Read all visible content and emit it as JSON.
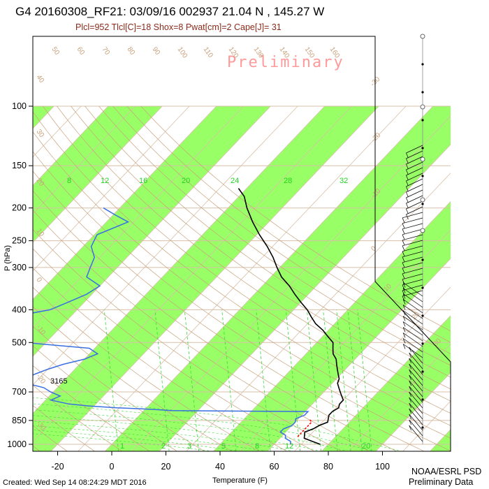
{
  "header": {
    "title": "G4 20160308_RF21: 03/09/16 002937  21.04 N , 145.27 W",
    "indices": "Plcl=952 Tlcl[C]=18 Shox=8 Pwat[cm]=2 Cape[J]= 31"
  },
  "watermark": "Preliminary",
  "footer": {
    "created": "Created: Wed Sep 14 08:24:29 MDT 2016",
    "credit_line1": "NOAA/ESRL PSD",
    "credit_line2": "Preliminary Data"
  },
  "chart_data": {
    "type": "line",
    "subtype": "skew-T log-P sounding",
    "xlabel": "Temperature (F)",
    "ylabel": "P (hPa)",
    "x_ticks": [
      -20,
      0,
      20,
      40,
      60,
      80,
      100
    ],
    "y_ticks": [
      100,
      150,
      200,
      250,
      300,
      400,
      500,
      700,
      850,
      1000
    ],
    "xlim_at_bottom": [
      -29,
      120
    ],
    "ylim": [
      1050,
      100
    ],
    "y_scale": "log",
    "mixing_ratio_labels": [
      "8",
      "12",
      "16",
      "20",
      "24",
      "28",
      "32"
    ],
    "mixing_ratio_bottom_labels": [
      "1",
      "2",
      "3",
      "5",
      "8",
      "12",
      "20"
    ],
    "dry_adiabat_labels": [
      "50",
      "60",
      "70",
      "80",
      "90",
      "100",
      "110",
      "120",
      "130",
      "140",
      "150",
      "160"
    ],
    "left_edge_labels": [
      "40",
      "30",
      "20",
      "10",
      "0",
      "-10",
      "-20",
      "-30"
    ],
    "isotherm_labels_right": [
      "-30",
      "-20",
      "-10",
      "0",
      "10",
      "20",
      "30"
    ],
    "annotation": "3165",
    "series": [
      {
        "name": "Temperature",
        "color": "#000000",
        "points": [
          [
            1000,
            77
          ],
          [
            980,
            73
          ],
          [
            960,
            69
          ],
          [
            940,
            68
          ],
          [
            920,
            67
          ],
          [
            900,
            69
          ],
          [
            880,
            70
          ],
          [
            860,
            72
          ],
          [
            840,
            71
          ],
          [
            820,
            70
          ],
          [
            800,
            70
          ],
          [
            780,
            71
          ],
          [
            760,
            70
          ],
          [
            740,
            70
          ],
          [
            720,
            68
          ],
          [
            700,
            66
          ],
          [
            680,
            64
          ],
          [
            660,
            62
          ],
          [
            640,
            61
          ],
          [
            620,
            59
          ],
          [
            600,
            57
          ],
          [
            580,
            55
          ],
          [
            560,
            53
          ],
          [
            540,
            50
          ],
          [
            520,
            48
          ],
          [
            500,
            46
          ],
          [
            480,
            42
          ],
          [
            460,
            38
          ],
          [
            440,
            33
          ],
          [
            420,
            29
          ],
          [
            400,
            25
          ],
          [
            380,
            20
          ],
          [
            360,
            15
          ],
          [
            340,
            10
          ],
          [
            320,
            4
          ],
          [
            300,
            -1
          ],
          [
            280,
            -6
          ],
          [
            260,
            -12
          ],
          [
            240,
            -19
          ],
          [
            220,
            -26
          ],
          [
            200,
            -33
          ],
          [
            185,
            -38
          ],
          [
            175,
            -43
          ]
        ]
      },
      {
        "name": "Dewpoint",
        "color": "#3a6fe0",
        "points": [
          [
            1000,
            66
          ],
          [
            980,
            65
          ],
          [
            960,
            62
          ],
          [
            940,
            61
          ],
          [
            920,
            58
          ],
          [
            900,
            58
          ],
          [
            880,
            60
          ],
          [
            860,
            60
          ],
          [
            840,
            59
          ],
          [
            820,
            61
          ],
          [
            800,
            61
          ],
          [
            795,
            10
          ],
          [
            790,
            5
          ],
          [
            785,
            -2
          ],
          [
            780,
            -11
          ],
          [
            770,
            -22
          ],
          [
            760,
            -30
          ],
          [
            740,
            -38
          ],
          [
            720,
            -36
          ],
          [
            700,
            -41
          ],
          [
            680,
            -45
          ],
          [
            660,
            -53
          ],
          [
            640,
            -55
          ],
          [
            620,
            -53
          ],
          [
            600,
            -50
          ],
          [
            580,
            -46
          ],
          [
            560,
            -40
          ],
          [
            540,
            -37
          ],
          [
            520,
            -42
          ],
          [
            500,
            -68
          ],
          [
            480,
            -76
          ],
          [
            460,
            -74
          ],
          [
            440,
            -79
          ],
          [
            420,
            -82
          ],
          [
            400,
            -70
          ],
          [
            380,
            -66
          ],
          [
            360,
            -62
          ],
          [
            340,
            -60
          ],
          [
            320,
            -68
          ],
          [
            300,
            -70
          ],
          [
            280,
            -72
          ],
          [
            260,
            -77
          ],
          [
            240,
            -79
          ],
          [
            220,
            -72
          ],
          [
            210,
            -79
          ],
          [
            200,
            -86
          ]
        ]
      },
      {
        "name": "Parcel",
        "color": "#ff0000",
        "points": [
          [
            950,
            66
          ],
          [
            900,
            66
          ],
          [
            860,
            66
          ],
          [
            840,
            64
          ]
        ]
      }
    ],
    "colors": {
      "mixing_band": "#99ff66",
      "isotherm": "#d8bfa7",
      "adiabat": "#c9a27c",
      "mixing_ratio": "#33dd33",
      "temperature": "#000000",
      "dewpoint": "#3a6fe0"
    }
  }
}
